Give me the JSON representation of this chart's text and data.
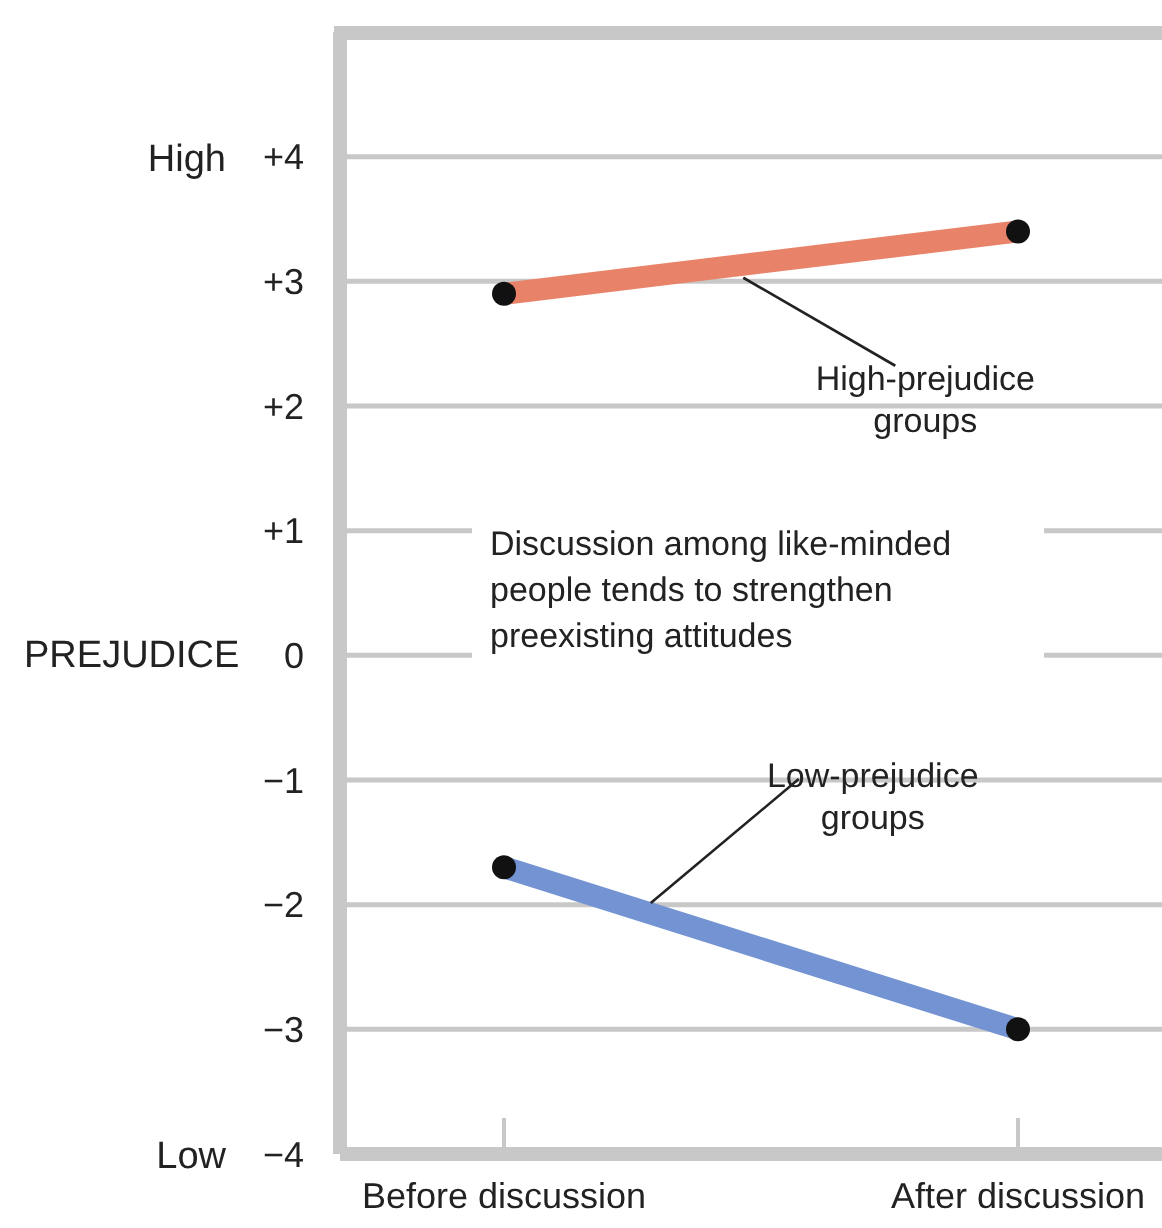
{
  "chart_data": {
    "type": "line",
    "ylabel": "PREJUDICE",
    "categories": [
      "Before discussion",
      "After discussion"
    ],
    "series": [
      {
        "name": "High-prejudice groups",
        "color": "#e8836a",
        "values": [
          2.9,
          3.4
        ]
      },
      {
        "name": "Low-prejudice groups",
        "color": "#7393d3",
        "values": [
          -1.7,
          -3.0
        ]
      }
    ],
    "ylim": [
      -4,
      5
    ],
    "yticks": [
      {
        "value": -4,
        "label": "−4"
      },
      {
        "value": -3,
        "label": "−3"
      },
      {
        "value": -2,
        "label": "−2"
      },
      {
        "value": -1,
        "label": "−1"
      },
      0,
      {
        "value": 1,
        "label": "+1"
      },
      {
        "value": 2,
        "label": "+2"
      },
      {
        "value": 3,
        "label": "+3"
      },
      {
        "value": 4,
        "label": "+4"
      }
    ],
    "grid": "y",
    "marker": "circle",
    "line_style": "solid",
    "annotations": [
      "High",
      "Low",
      "Discussion among like-minded people tends to strengthen preexisting attitudes"
    ]
  }
}
